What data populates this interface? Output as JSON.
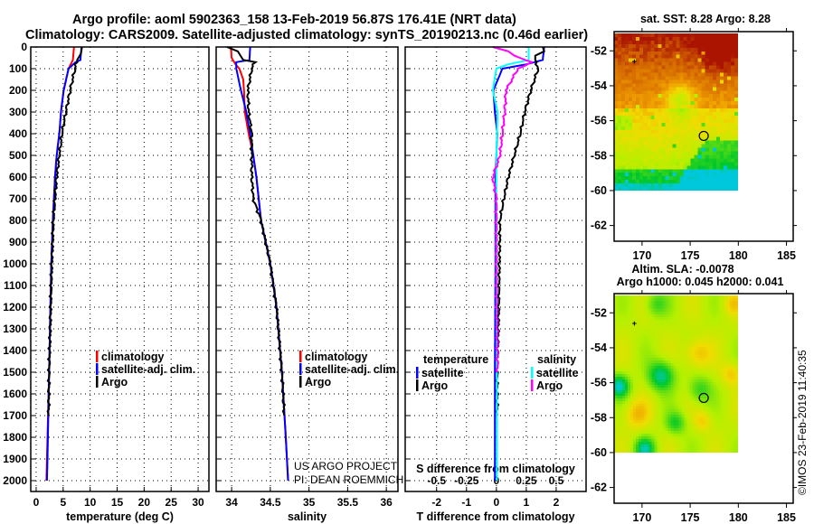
{
  "title": {
    "line1": "Argo profile: aoml 5902363_158 13-Feb-2019 56.87S 176.41E (NRT data)",
    "line2": "Climatology: CARS2009. Satellite-adjusted climatology: synTS_20190213.nc (0.46d earlier)"
  },
  "colors": {
    "climatology": "#ff0000",
    "satellite": "#0000ff",
    "argo": "#000000",
    "salinity_satellite": "#00ffff",
    "salinity_argo": "#ff00ff"
  },
  "credit": {
    "line1": "US ARGO PROJECT",
    "line2": "PI: DEAN ROEMMICH"
  },
  "watermark": "©IMOS 23-Feb-2019 11:40:35",
  "chart_data": [
    {
      "type": "line",
      "name": "temperature",
      "xlabel": "temperature (deg C)",
      "xlim": [
        -1,
        32
      ],
      "ylim": [
        2050,
        0
      ],
      "xticks": [
        "0",
        "5",
        "10",
        "15",
        "20",
        "25",
        "30"
      ],
      "yticks": [
        "0",
        "100",
        "200",
        "300",
        "400",
        "500",
        "600",
        "700",
        "800",
        "900",
        "1000",
        "1100",
        "1200",
        "1300",
        "1400",
        "1500",
        "1600",
        "1700",
        "1800",
        "1900",
        "2000"
      ],
      "grid": true,
      "legend": "center-right",
      "series": [
        {
          "name": "climatology",
          "color": "#ff0000",
          "depth": [
            0,
            60,
            100,
            200,
            300,
            400,
            500,
            600,
            800,
            1000,
            1500,
            1900,
            2000
          ],
          "values": [
            7.0,
            6.8,
            6.0,
            5.1,
            4.6,
            4.3,
            3.8,
            3.5,
            3.1,
            2.8,
            2.4,
            2.0,
            1.9
          ]
        },
        {
          "name": "satellite-adj. clim.",
          "color": "#0000ff",
          "depth": [
            0,
            60,
            70,
            100,
            200,
            300,
            400,
            500,
            600,
            800,
            1000,
            1500,
            1900,
            2000
          ],
          "values": [
            8.4,
            8.2,
            7.3,
            6.0,
            5.1,
            4.6,
            4.3,
            3.8,
            3.5,
            3.1,
            2.8,
            2.4,
            2.1,
            2.0
          ]
        },
        {
          "name": "Argo",
          "color": "#000000",
          "depth": [
            0,
            30,
            60,
            100,
            200,
            300,
            400,
            500,
            600,
            800,
            1000,
            1500,
            1700
          ],
          "values": [
            8.5,
            8.3,
            7.6,
            7.2,
            6.3,
            5.5,
            4.8,
            4.3,
            3.8,
            3.2,
            2.9,
            2.4,
            2.3
          ]
        }
      ]
    },
    {
      "type": "line",
      "name": "salinity",
      "xlabel": "salinity",
      "xlim": [
        33.8,
        36.15
      ],
      "ylim": [
        2050,
        0
      ],
      "xticks": [
        "34",
        "34.5",
        "35",
        "35.5",
        "36"
      ],
      "grid": true,
      "legend": "center-right",
      "series": [
        {
          "name": "climatology",
          "color": "#ff0000",
          "depth": [
            0,
            50,
            80,
            100,
            150,
            200,
            300,
            400,
            500,
            600,
            800,
            1000,
            1200,
            1500,
            1800,
            2000
          ],
          "values": [
            33.99,
            34.0,
            34.05,
            34.1,
            34.15,
            34.16,
            34.17,
            34.22,
            34.28,
            34.32,
            34.38,
            34.5,
            34.58,
            34.65,
            34.7,
            34.73
          ]
        },
        {
          "name": "satellite-adj. clim.",
          "color": "#0000ff",
          "depth": [
            0,
            60,
            70,
            100,
            200,
            300,
            400,
            500,
            600,
            700,
            800,
            1000,
            1200,
            1500,
            1800,
            2000
          ],
          "values": [
            34.24,
            34.23,
            34.06,
            34.06,
            34.12,
            34.19,
            34.24,
            34.28,
            34.32,
            34.35,
            34.38,
            34.5,
            34.58,
            34.65,
            34.7,
            34.73
          ]
        },
        {
          "name": "Argo",
          "color": "#000000",
          "depth": [
            0,
            20,
            60,
            70,
            100,
            200,
            300,
            400,
            500,
            600,
            700,
            800,
            1000,
            1200,
            1500,
            1700
          ],
          "values": [
            33.94,
            34.08,
            34.15,
            34.3,
            34.26,
            34.21,
            34.22,
            34.26,
            34.26,
            34.26,
            34.28,
            34.38,
            34.5,
            34.58,
            34.65,
            34.68
          ]
        }
      ]
    },
    {
      "type": "line",
      "name": "difference",
      "xlabel": "T difference from climatology",
      "xlim": [
        -3.05,
        3.0
      ],
      "ylim": [
        2050,
        0
      ],
      "xticks": [
        "-2",
        "-1",
        "0",
        "1",
        "2"
      ],
      "x2label": "S difference from climatology",
      "x2lim": [
        -0.7625,
        0.75
      ],
      "x2ticks": [
        "-0.5",
        "-0.25",
        "0",
        "0.25",
        "0.5"
      ],
      "grid": true,
      "legend": "center",
      "legend_titles": {
        "temperature": "temperature",
        "salinity": "salinity"
      },
      "series": [
        {
          "name": "satellite",
          "group": "temperature",
          "color": "#0000ff",
          "depth": [
            0,
            60,
            80,
            100,
            200,
            300,
            400,
            600,
            1000,
            1500,
            2000
          ],
          "values": [
            1.6,
            1.55,
            1.0,
            0.2,
            -0.1,
            -0.05,
            0.03,
            -0.03,
            -0.03,
            -0.05,
            -0.05
          ]
        },
        {
          "name": "Argo",
          "group": "temperature",
          "color": "#000000",
          "depth": [
            0,
            20,
            40,
            60,
            80,
            100,
            200,
            300,
            400,
            500,
            600,
            700,
            800,
            1000,
            1200,
            1500,
            1700
          ],
          "values": [
            1.55,
            1.6,
            1.3,
            1.3,
            1.35,
            1.4,
            1.15,
            0.95,
            0.8,
            0.6,
            0.4,
            0.25,
            0.12,
            0.1,
            0.08,
            0.03,
            0.03
          ]
        },
        {
          "name": "satellite",
          "group": "salinity",
          "color": "#00ffff",
          "depth": [
            0,
            60,
            80,
            100,
            200,
            300,
            500,
            1000,
            1500,
            2000
          ],
          "values": [
            0.27,
            0.27,
            0.1,
            0.0,
            -0.03,
            0.01,
            0.0,
            0.0,
            0.005,
            0.005
          ]
        },
        {
          "name": "Argo",
          "group": "salinity",
          "color": "#ff00ff",
          "depth": [
            0,
            20,
            40,
            70,
            80,
            100,
            200,
            300,
            400,
            500,
            600,
            700,
            1000,
            1500
          ],
          "values": [
            -0.03,
            0.1,
            0.15,
            0.29,
            0.27,
            0.18,
            0.08,
            0.07,
            0.05,
            0.03,
            -0.03,
            0.0,
            0.0,
            0.01
          ]
        }
      ]
    },
    {
      "type": "heatmap",
      "name": "sst-map",
      "title": "sat. SST: 8.28 Argo: 8.28",
      "xlim": [
        167.1,
        185.7
      ],
      "ylim": [
        -62.9,
        -50.9
      ],
      "xticks": [
        "170",
        "175",
        "180",
        "185"
      ],
      "yticks": [
        "-52",
        "-54",
        "-56",
        "-58",
        "-60",
        "-62"
      ],
      "data_extent": {
        "lon": [
          167.1,
          180
        ],
        "lat": [
          -60,
          -51
        ]
      },
      "float_position": {
        "lon": 176.41,
        "lat": -56.87
      }
    },
    {
      "type": "heatmap",
      "name": "sla-map",
      "title": "Altim. SLA: -0.0078",
      "subtitle": "Argo h1000: 0.045 h2000: 0.041",
      "xlim": [
        167.1,
        185.7
      ],
      "ylim": [
        -62.9,
        -50.9
      ],
      "xticks": [
        "170",
        "175",
        "180",
        "185"
      ],
      "yticks": [
        "-52",
        "-54",
        "-56",
        "-58",
        "-60",
        "-62"
      ],
      "data_extent": {
        "lon": [
          167.1,
          180
        ],
        "lat": [
          -60,
          -51
        ]
      },
      "float_position": {
        "lon": 176.41,
        "lat": -56.87
      }
    }
  ]
}
